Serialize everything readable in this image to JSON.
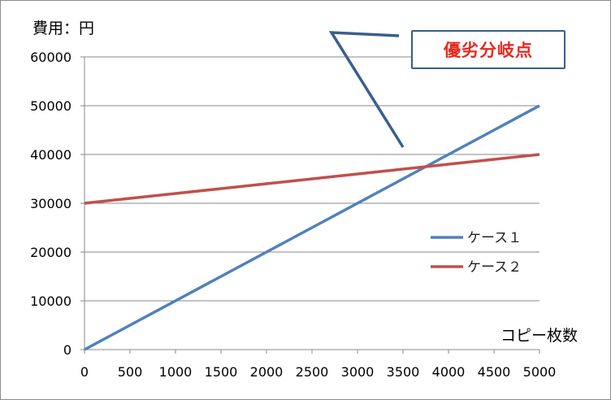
{
  "chart_data": {
    "type": "line",
    "ylabel": "費用：円",
    "xlabel": "コピー枚数",
    "x": [
      0,
      500,
      1000,
      1500,
      2000,
      2500,
      3000,
      3500,
      4000,
      4500,
      5000
    ],
    "xlim": [
      0,
      5000
    ],
    "ylim": [
      0,
      60000
    ],
    "yticks": [
      0,
      10000,
      20000,
      30000,
      40000,
      50000,
      60000
    ],
    "grid": true,
    "legend_position": "right",
    "series": [
      {
        "name": "ケース１",
        "color": "#4f81bd",
        "values": [
          0,
          5000,
          10000,
          15000,
          20000,
          25000,
          30000,
          35000,
          40000,
          45000,
          50000
        ]
      },
      {
        "name": "ケース２",
        "color": "#c0504d",
        "values": [
          30000,
          31000,
          32000,
          33000,
          34000,
          35000,
          36000,
          37000,
          38000,
          39000,
          40000
        ]
      }
    ],
    "annotation": {
      "text": "優劣分岐点",
      "x": 3750,
      "y": 37500,
      "text_color": "#e8291d",
      "line_color": "#3a5f8b"
    }
  }
}
